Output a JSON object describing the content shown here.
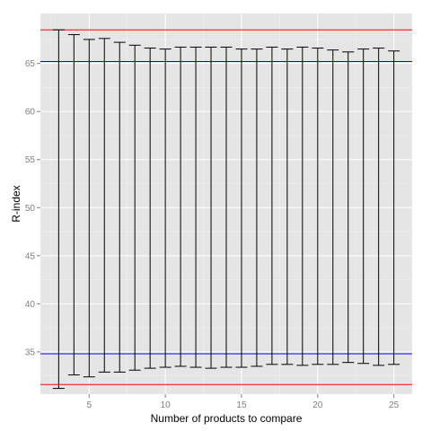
{
  "chart_data": {
    "type": "errorbar",
    "title": "",
    "xlabel": "Number of products to compare",
    "ylabel": "R-index",
    "xlim": [
      1.8,
      26.2
    ],
    "ylim": [
      30.6,
      70.2
    ],
    "x_ticks": [
      5,
      10,
      15,
      20,
      25
    ],
    "y_ticks": [
      35,
      40,
      45,
      50,
      55,
      60,
      65
    ],
    "grid": true,
    "background": "#e5e5e5",
    "x": [
      3,
      4,
      5,
      6,
      7,
      8,
      9,
      10,
      11,
      12,
      13,
      14,
      15,
      16,
      17,
      18,
      19,
      20,
      21,
      22,
      23,
      24,
      25
    ],
    "upper": [
      68.5,
      68.0,
      67.5,
      67.6,
      67.2,
      66.9,
      66.6,
      66.5,
      66.7,
      66.7,
      66.7,
      66.7,
      66.5,
      66.5,
      66.7,
      66.5,
      66.7,
      66.6,
      66.4,
      66.2,
      66.5,
      66.6,
      66.3
    ],
    "lower": [
      31.2,
      32.6,
      32.4,
      32.9,
      32.9,
      33.1,
      33.3,
      33.4,
      33.5,
      33.4,
      33.3,
      33.4,
      33.4,
      33.5,
      33.7,
      33.7,
      33.6,
      33.7,
      33.7,
      33.9,
      33.8,
      33.6,
      33.7
    ],
    "reference_lines": [
      {
        "y": 68.5,
        "color": "#ff0000"
      },
      {
        "y": 65.2,
        "color": "#0000ff"
      },
      {
        "y": 34.8,
        "color": "#0000ff"
      },
      {
        "y": 31.6,
        "color": "#ff0000"
      }
    ]
  }
}
